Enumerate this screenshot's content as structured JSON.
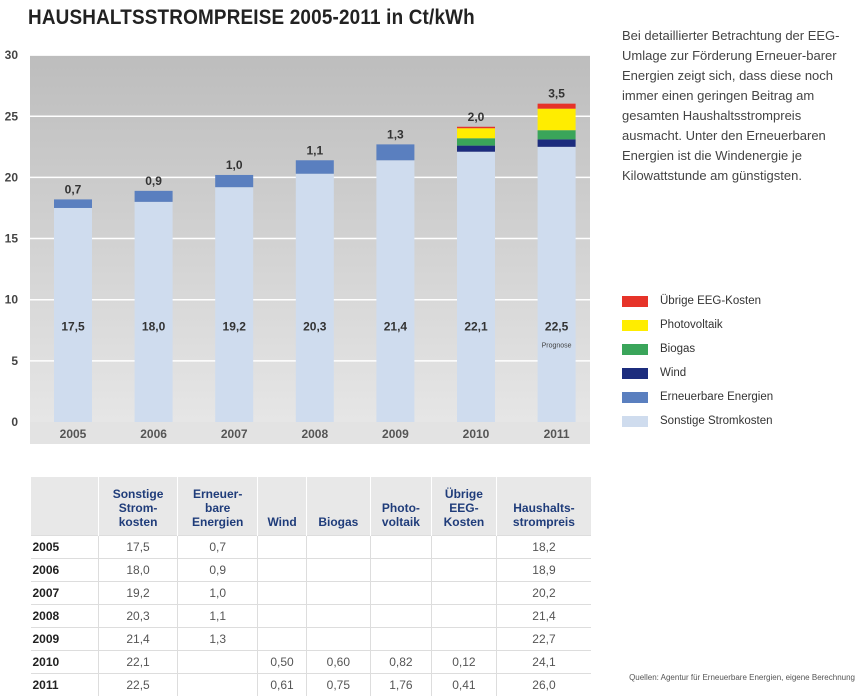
{
  "title": "HAUSHALTSSTROMPREISE 2005-2011 in Ct/kWh",
  "description": "Bei detaillierter Betrachtung der EEG-Umlage zur Förderung Erneuer-barer Energien zeigt sich, dass diese noch immer einen geringen Beitrag am gesamten Haushaltsstrompreis ausmacht. Unter den Erneuerbaren Energien ist die Windenergie je Kilowattstunde am günstigsten.",
  "source": "Quellen: Agentur für Erneuerbare Energien, eigene Berechnung",
  "chart_data": {
    "type": "bar",
    "stacked": true,
    "categories": [
      "2005",
      "2006",
      "2007",
      "2008",
      "2009",
      "2010",
      "2011"
    ],
    "ylim": [
      0,
      30
    ],
    "yticks": [
      "0",
      "5",
      "10",
      "15",
      "20",
      "25",
      "30"
    ],
    "grid": true,
    "legend_position": "right",
    "series": [
      {
        "name": "Sonstige Stromkosten",
        "color": "#cfdcee",
        "values": [
          17.5,
          18.0,
          19.2,
          20.3,
          21.4,
          22.1,
          22.5
        ]
      },
      {
        "name": "Erneuerbare Energien",
        "color": "#5a7fbf",
        "values": [
          0.7,
          0.9,
          1.0,
          1.1,
          1.3,
          0,
          0
        ]
      },
      {
        "name": "Wind",
        "color": "#1c2c7d",
        "values": [
          0,
          0,
          0,
          0,
          0,
          0.5,
          0.61
        ]
      },
      {
        "name": "Biogas",
        "color": "#3aa55a",
        "values": [
          0,
          0,
          0,
          0,
          0,
          0.6,
          0.75
        ]
      },
      {
        "name": "Photovoltaik",
        "color": "#ffed00",
        "values": [
          0,
          0,
          0,
          0,
          0,
          0.82,
          1.76
        ]
      },
      {
        "name": "Übrige EEG-Kosten",
        "color": "#e63329",
        "values": [
          0,
          0,
          0,
          0,
          0,
          0.12,
          0.41
        ]
      }
    ],
    "base_labels": [
      "17,5",
      "18,0",
      "19,2",
      "20,3",
      "21,4",
      "22,1",
      "22,5"
    ],
    "top_labels": [
      "0,7",
      "0,9",
      "1,0",
      "1,1",
      "1,3",
      "2,0",
      "3,5"
    ],
    "annotation": "Prognose"
  },
  "table": {
    "headers": [
      [
        "Sonstige",
        "Strom-",
        "kosten"
      ],
      [
        "Erneuer-",
        "bare",
        "Energien"
      ],
      [
        "Wind"
      ],
      [
        "Biogas"
      ],
      [
        "Photo-",
        "voltaik"
      ],
      [
        "Übrige",
        "EEG-",
        "Kosten"
      ],
      [
        "Haushalts-",
        "strompreis"
      ]
    ],
    "rows": [
      [
        "2005",
        "17,5",
        "0,7",
        "",
        "",
        "",
        "",
        "18,2"
      ],
      [
        "2006",
        "18,0",
        "0,9",
        "",
        "",
        "",
        "",
        "18,9"
      ],
      [
        "2007",
        "19,2",
        "1,0",
        "",
        "",
        "",
        "",
        "20,2"
      ],
      [
        "2008",
        "20,3",
        "1,1",
        "",
        "",
        "",
        "",
        "21,4"
      ],
      [
        "2009",
        "21,4",
        "1,3",
        "",
        "",
        "",
        "",
        "22,7"
      ],
      [
        "2010",
        "22,1",
        "",
        "0,50",
        "0,60",
        "0,82",
        "0,12",
        "24,1"
      ],
      [
        "2011",
        "22,5",
        "",
        "0,61",
        "0,75",
        "1,76",
        "0,41",
        "26,0"
      ]
    ]
  }
}
